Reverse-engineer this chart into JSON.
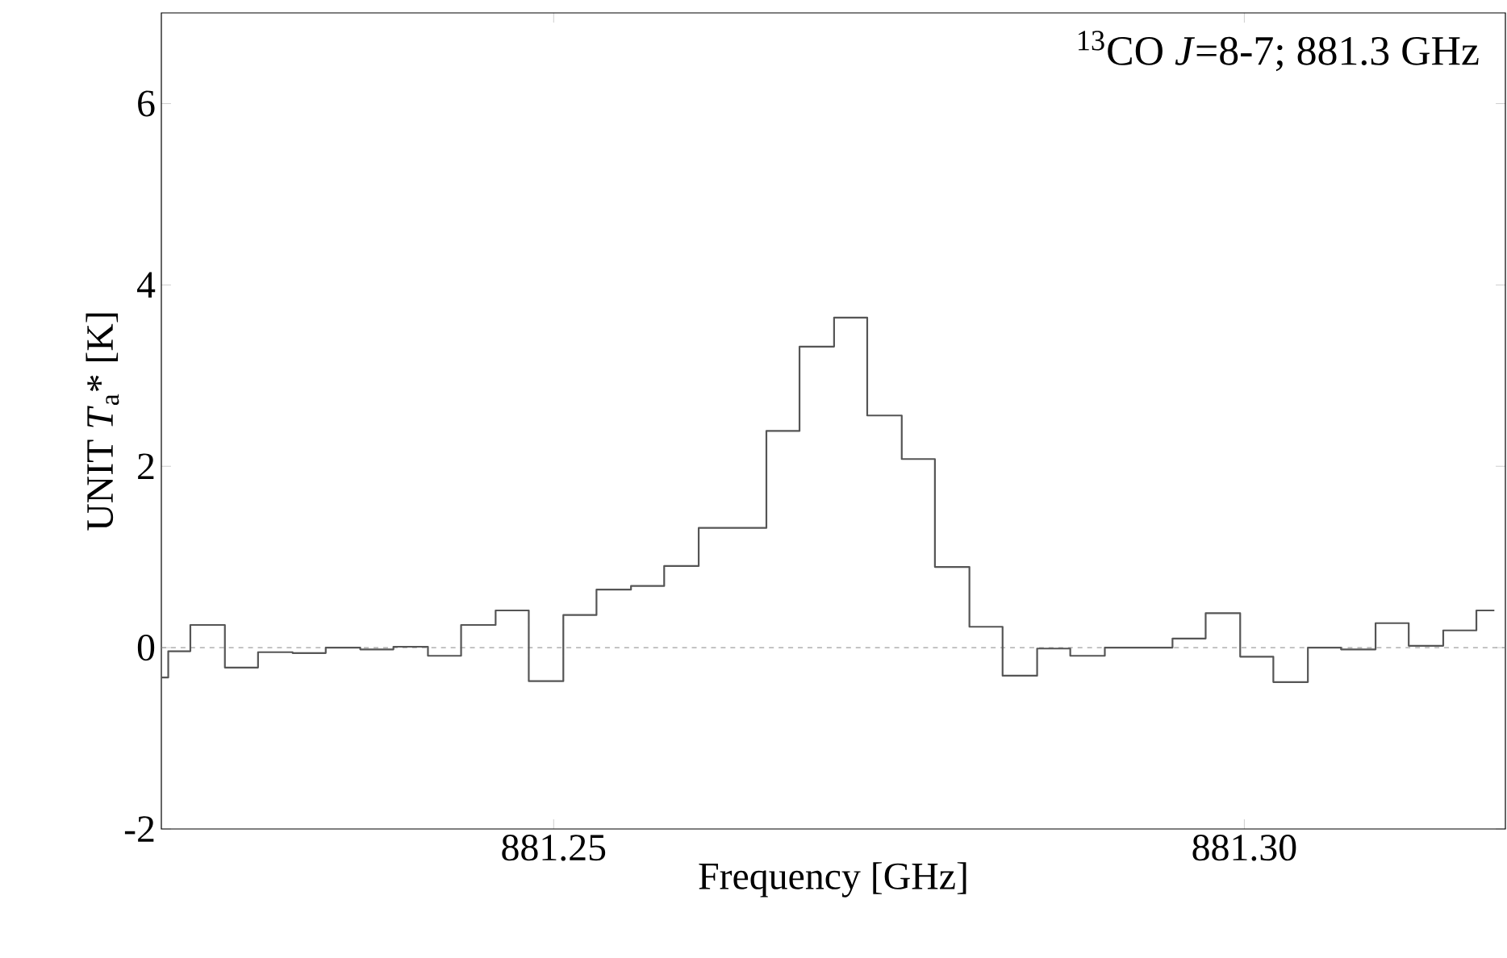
{
  "chart_data": {
    "type": "histogram",
    "bins": [
      881.2216,
      881.2221,
      881.2237,
      881.2262,
      881.2286,
      881.2311,
      881.2335,
      881.236,
      881.2384,
      881.2409,
      881.2433,
      881.2458,
      881.2482,
      881.2507,
      881.2531,
      881.2556,
      881.258,
      881.2605,
      881.2629,
      881.2654,
      881.2678,
      881.2703,
      881.2727,
      881.2752,
      881.2776,
      881.2801,
      881.2825,
      881.285,
      881.2874,
      881.2899,
      881.2923,
      881.2948,
      881.2972,
      881.2997,
      881.3021,
      881.3046,
      881.307,
      881.3095,
      881.3119,
      881.3144,
      881.3168,
      881.3181
    ],
    "values": [
      -0.33,
      -0.04,
      0.25,
      -0.22,
      -0.05,
      -0.06,
      0.0,
      -0.02,
      0.01,
      -0.09,
      0.25,
      0.41,
      -0.37,
      0.36,
      0.64,
      0.68,
      0.9,
      1.32,
      1.32,
      2.39,
      3.32,
      3.64,
      2.56,
      2.08,
      0.89,
      0.23,
      -0.31,
      -0.01,
      -0.09,
      0.0,
      0.0,
      0.1,
      0.38,
      -0.1,
      -0.38,
      0.0,
      -0.02,
      0.27,
      0.02,
      0.19,
      0.41
    ],
    "color": "#555555",
    "xlabel": "Frequency [GHz]",
    "ylabel": "UNIT *T*$_{a}$* [K]",
    "annotations": [
      "$^{13}$CO  *J*=8-7; 881.3 GHz"
    ],
    "xlim": [
      881.2216,
      881.3189
    ],
    "ylim": [
      -2,
      7
    ],
    "xticks": [
      {
        "value": 881.25,
        "label": "881.25"
      },
      {
        "value": 881.3,
        "label": "881.30"
      }
    ],
    "yticks": [
      -2,
      0,
      2,
      4,
      6
    ],
    "ref_lines": [
      {
        "axis": "y",
        "value": 0,
        "line_style": "dashed",
        "color": "#888888"
      }
    ]
  }
}
